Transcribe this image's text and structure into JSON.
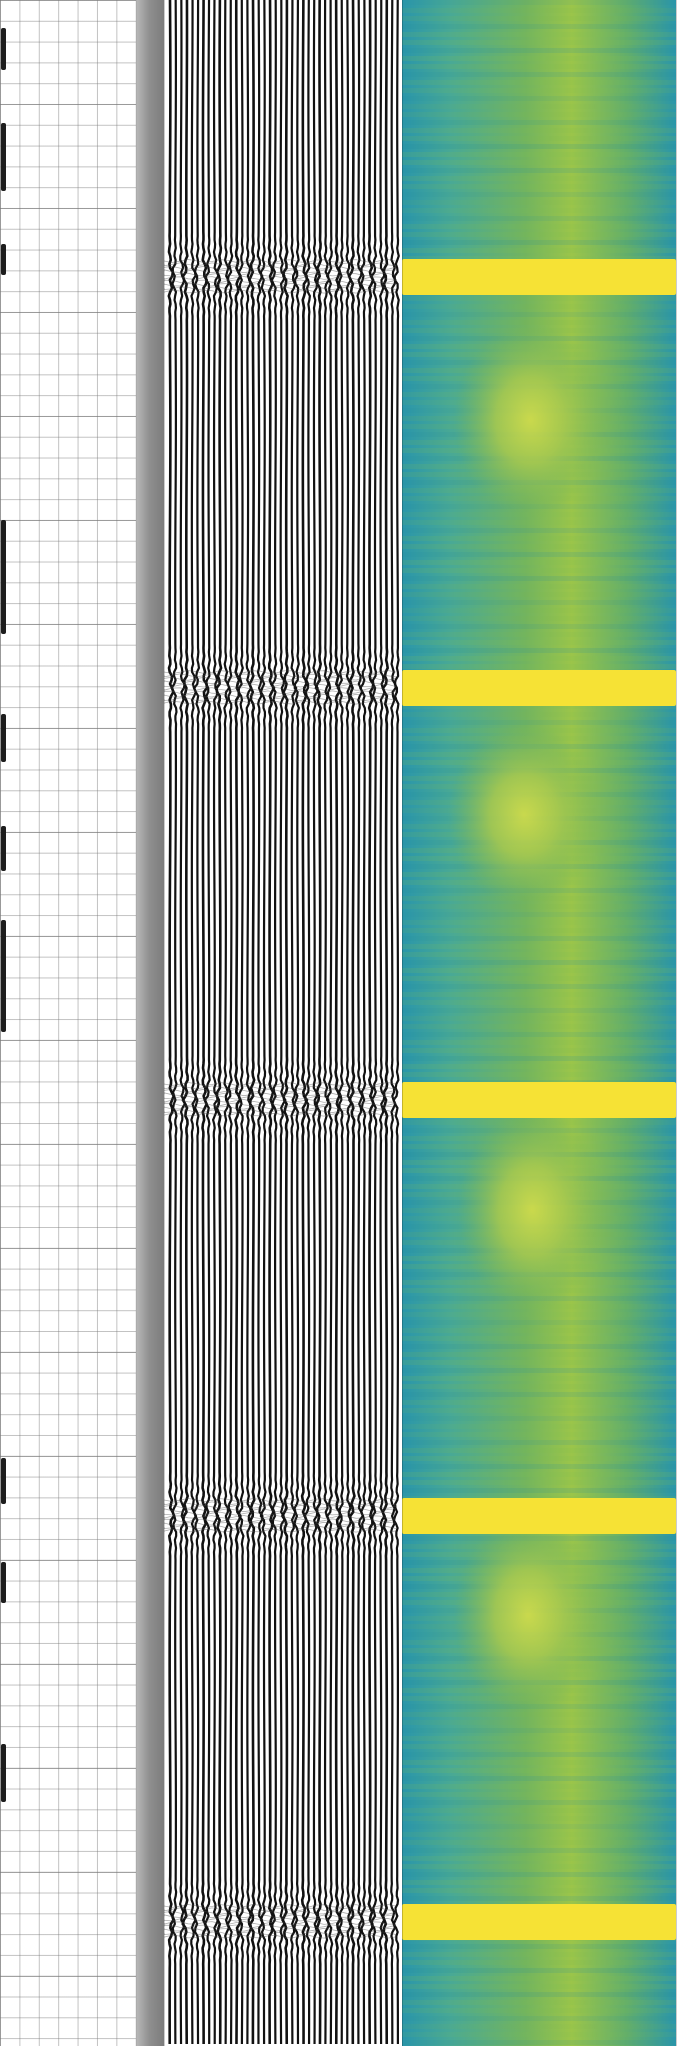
{
  "figure": {
    "panels": [
      {
        "name": "graph-paper-panel"
      },
      {
        "name": "seismic-wiggle-panel"
      },
      {
        "name": "semblance-heatmap-panel"
      }
    ],
    "colors": {
      "paper_line": "#8a8a8a",
      "wiggle": "#111111",
      "heat_blue": "#2a96aa",
      "heat_green": "#72b45f",
      "heat_yellow": "#f6e235"
    }
  }
}
